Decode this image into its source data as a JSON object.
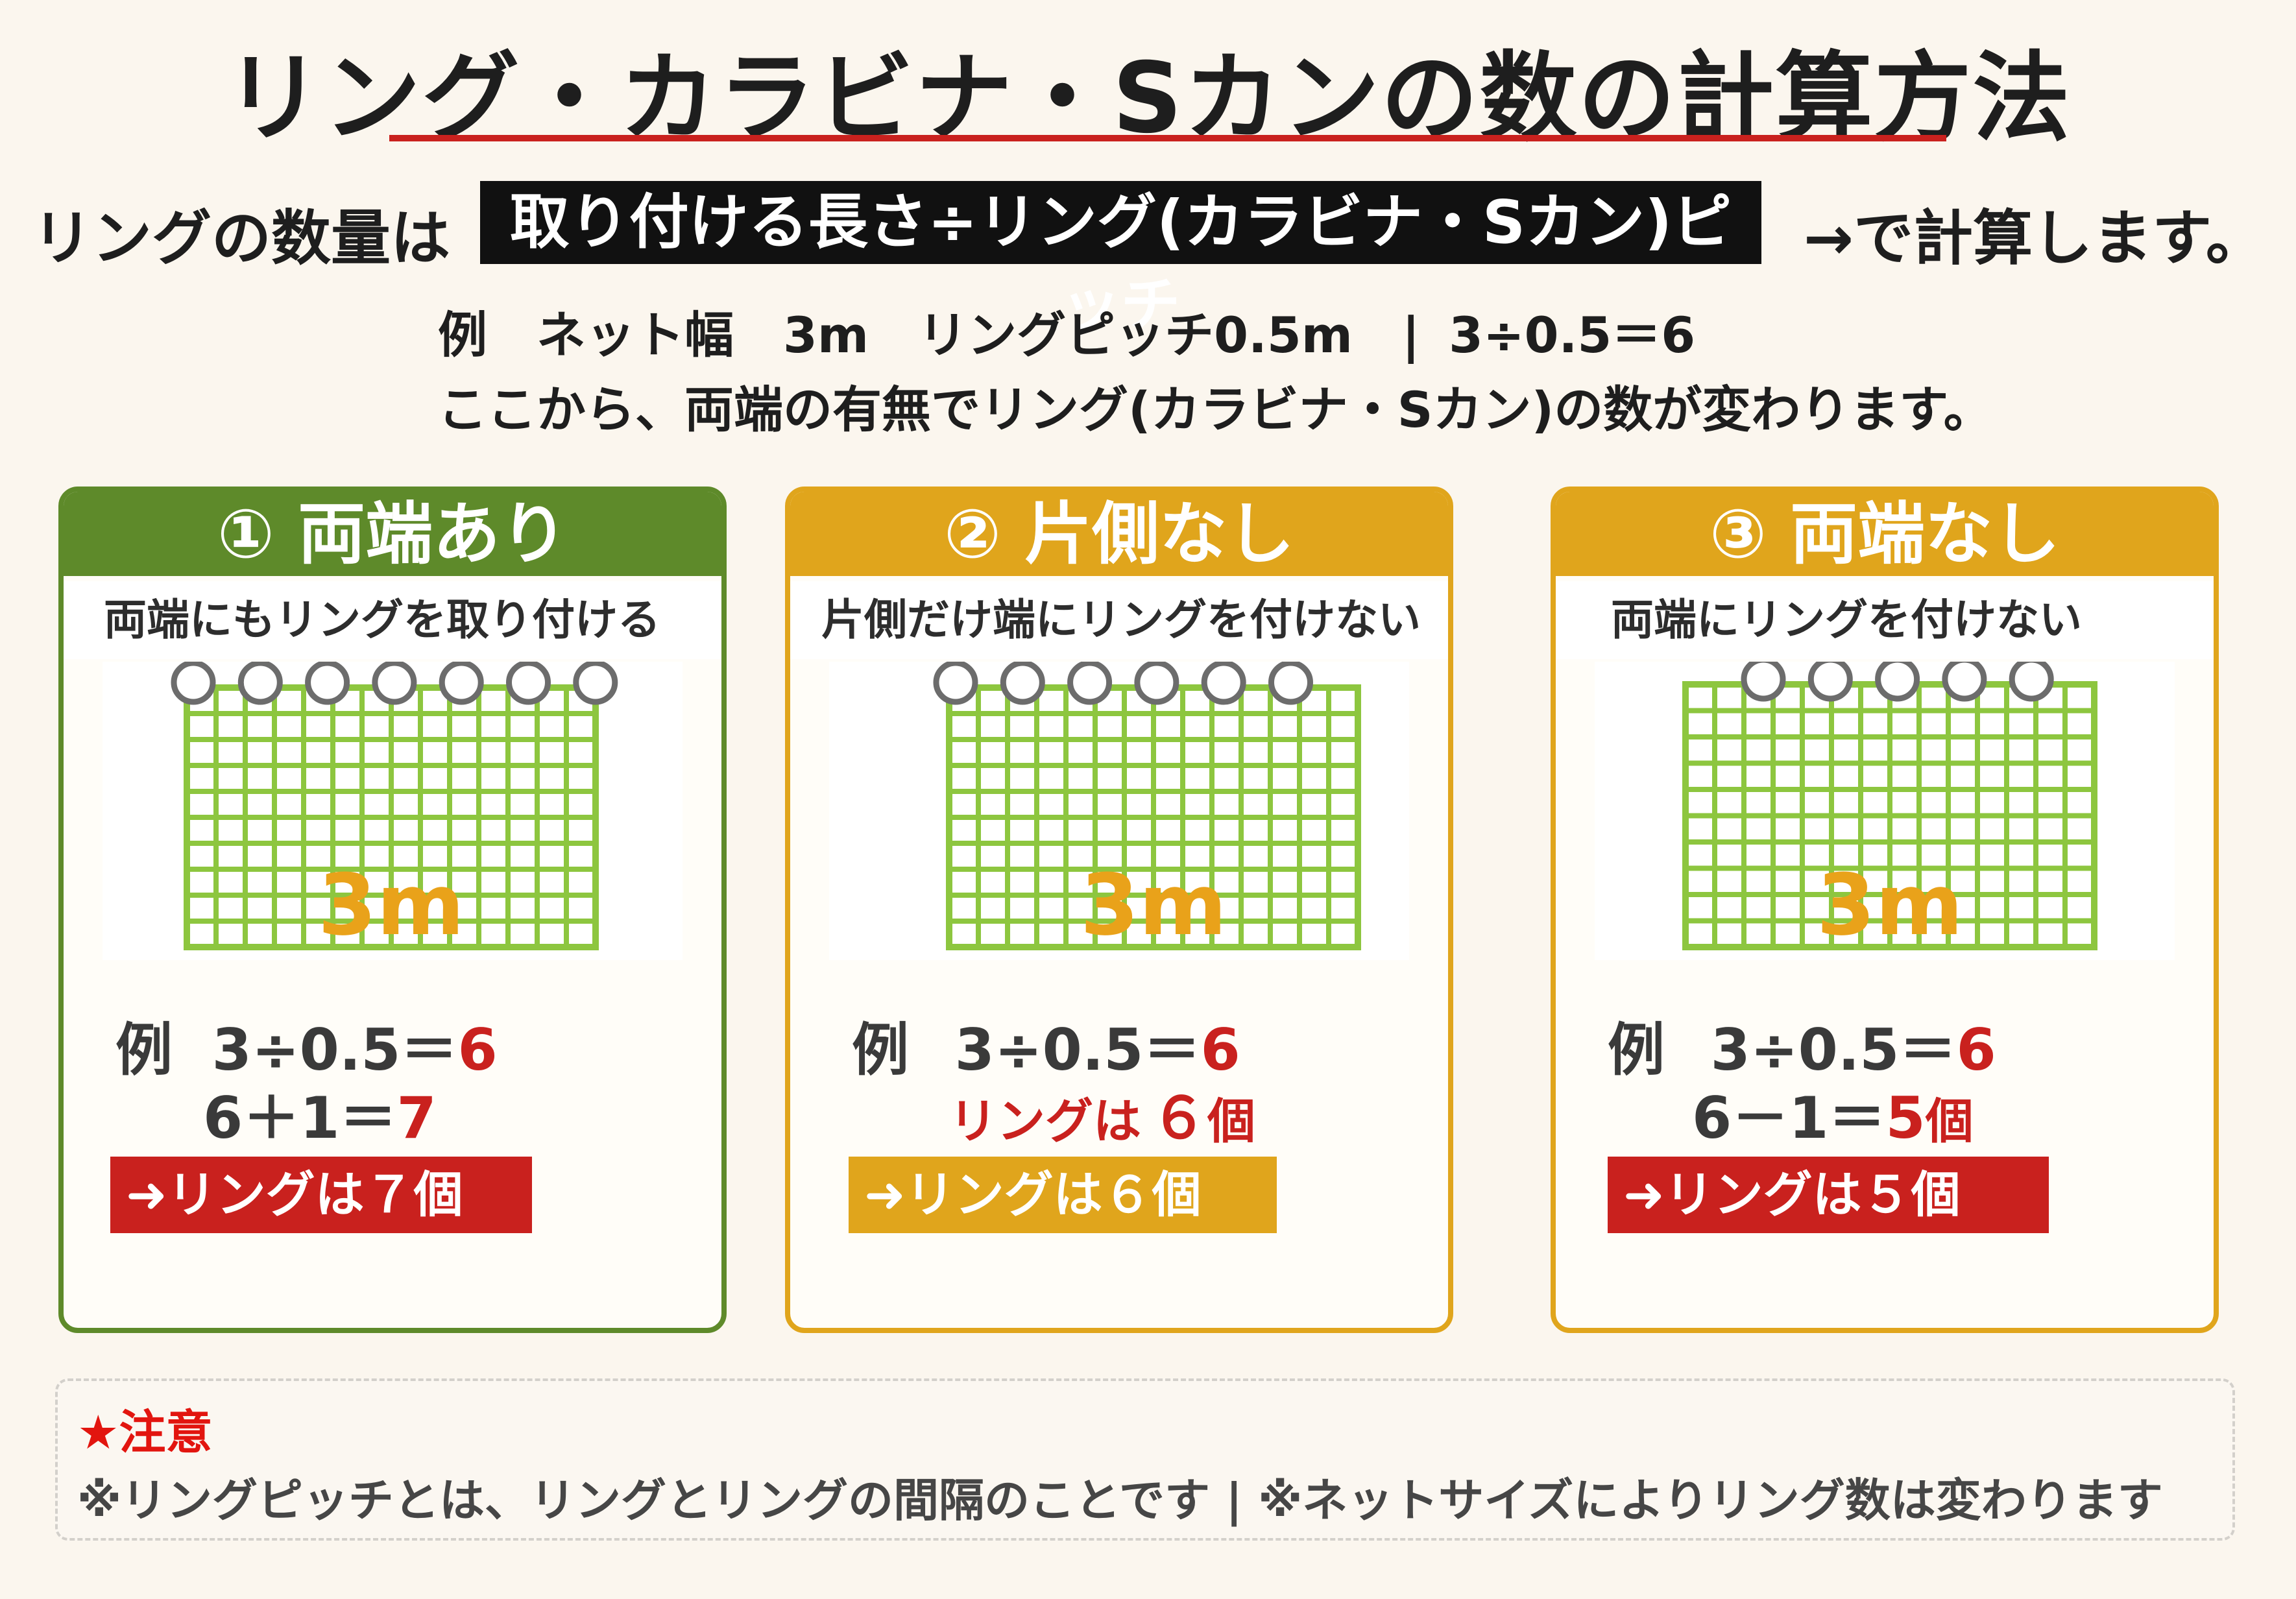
{
  "title": "リング・カラビナ・Sカンの数の計算方法",
  "formula": {
    "lead": "リングの数量は",
    "box": "取り付ける長さ÷リング(カラビナ・Sカン)ピッチ",
    "tail": "→で計算します。"
  },
  "example_line": "例　ネット幅　3m　リングピッチ0.5m　| 3÷0.5＝6",
  "note_line": "ここから、両端の有無でリング(カラビナ・Sカン)の数が変わります。",
  "colors": {
    "green": "#5e8a2a",
    "orange": "#e0a51c",
    "red": "#c9211e",
    "net": "#8dc63f",
    "ring": "#6c6c6c",
    "length": "#e9a21a"
  },
  "cards": [
    {
      "header": "① 両端あり",
      "subtitle": "両端にもリングを取り付ける",
      "length": "3m",
      "rings": 7,
      "calc_prefix": "例",
      "calc1": "3÷0.5＝",
      "calc1_result": "6",
      "calc2": "6＋1＝",
      "calc2_result": "7",
      "result": "➜リングは７個"
    },
    {
      "header": "② 片側なし",
      "subtitle": "片側だけ端にリングを付けない",
      "length": "3m",
      "rings": 6,
      "calc_prefix": "例",
      "calc1": "3÷0.5＝",
      "calc1_result": "6",
      "calc2_label": "リングは",
      "calc2_result": "６",
      "calc2_unit": "個",
      "result": "➜リングは６個"
    },
    {
      "header": "③ 両端なし",
      "subtitle": "両端にリングを付けない",
      "length": "3m",
      "rings": 5,
      "calc_prefix": "例",
      "calc1": "3÷0.5＝",
      "calc1_result": "6",
      "calc2": "6－1＝",
      "calc2_result": "5",
      "calc2_unit": "個",
      "result": "➜リングは５個"
    }
  ],
  "notice": {
    "title": "★注意",
    "text": "※リングピッチとは、リングとリングの間隔のことです | ※ネットサイズによりリング数は変わります"
  }
}
